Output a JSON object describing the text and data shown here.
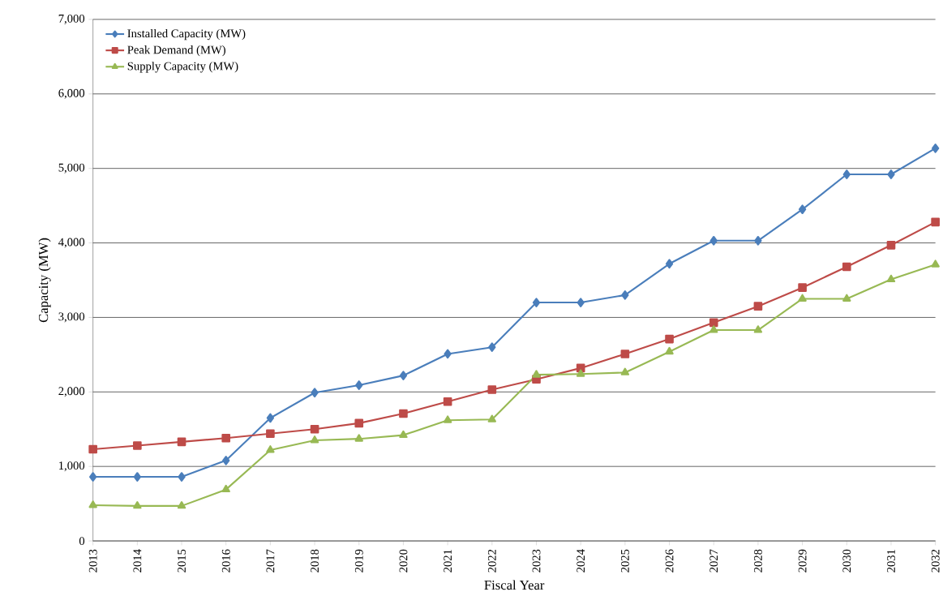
{
  "chart_data": {
    "type": "line",
    "xlabel": "Fiscal Year",
    "ylabel": "Capacity  (MW)",
    "categories": [
      "2013",
      "2014",
      "2015",
      "2016",
      "2017",
      "2018",
      "2019",
      "2020",
      "2021",
      "2022",
      "2023",
      "2024",
      "2025",
      "2026",
      "2027",
      "2028",
      "2029",
      "2030",
      "2031",
      "2032"
    ],
    "series": [
      {
        "name": "Installed Capacity (MW)",
        "color": "#4a7ebb",
        "marker": "diamond",
        "values": [
          860,
          860,
          860,
          1080,
          1650,
          1990,
          2090,
          2220,
          2510,
          2600,
          3200,
          3200,
          3300,
          3720,
          4030,
          4030,
          4450,
          4920,
          4920,
          5270
        ]
      },
      {
        "name": "Peak Demand (MW)",
        "color": "#be4b48",
        "marker": "square",
        "values": [
          1230,
          1280,
          1330,
          1380,
          1440,
          1500,
          1580,
          1710,
          1870,
          2030,
          2170,
          2320,
          2510,
          2710,
          2930,
          3150,
          3400,
          3680,
          3970,
          4280
        ]
      },
      {
        "name": "Supply Capacity (MW)",
        "color": "#98b954",
        "marker": "triangle",
        "values": [
          480,
          470,
          470,
          690,
          1220,
          1350,
          1370,
          1420,
          1620,
          1630,
          2230,
          2240,
          2260,
          2540,
          2830,
          2830,
          3250,
          3250,
          3510,
          3710
        ]
      }
    ],
    "ylim": [
      0,
      7000
    ],
    "yticks": [
      0,
      {
        "value": 1000,
        "label": "1,000"
      },
      {
        "value": 2000,
        "label": "2,000"
      },
      {
        "value": 3000,
        "label": "3,000"
      },
      {
        "value": 4000,
        "label": "4,000"
      },
      {
        "value": 5000,
        "label": "5,000"
      },
      {
        "value": 6000,
        "label": "6,000"
      },
      {
        "value": 7000,
        "label": "7,000"
      }
    ],
    "grid": "y",
    "legend": "top left",
    "line_style": "solid"
  }
}
